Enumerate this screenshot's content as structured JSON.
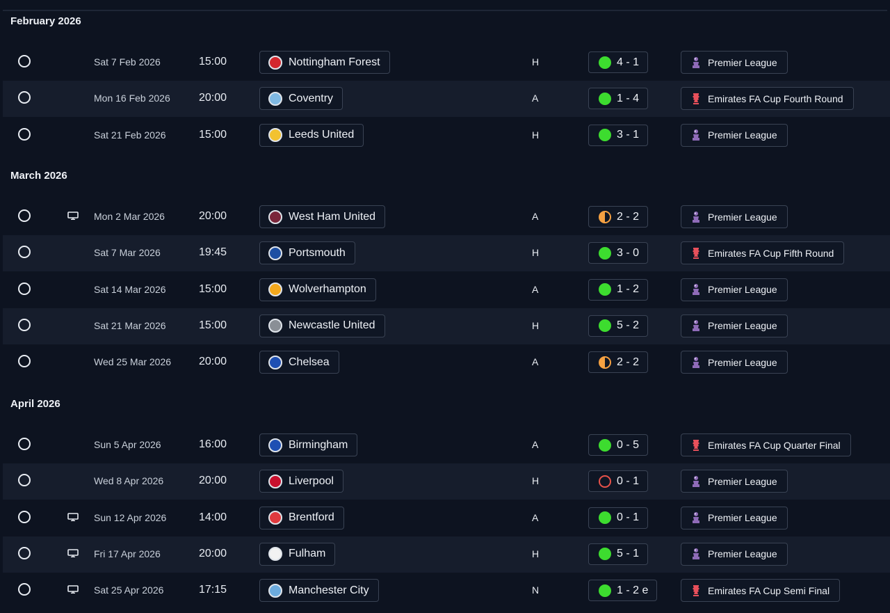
{
  "colors": {
    "win": "#3ddc2f",
    "draw": "#f5a142",
    "loss": "#e8524a",
    "background": "#0d1320",
    "row_alt": "#161d2c"
  },
  "months": [
    {
      "label": "February 2026",
      "matches": [
        {
          "date": "Sat 7 Feb 2026",
          "time": "15:00",
          "team": "Nottingham Forest",
          "crest_color": "#d3272e",
          "venue": "H",
          "outcome": "win",
          "score": "4 - 1",
          "competition": "Premier League",
          "comp_icon": "premier-league-icon",
          "tv": false
        },
        {
          "date": "Mon 16 Feb 2026",
          "time": "20:00",
          "team": "Coventry",
          "crest_color": "#7fb9e3",
          "venue": "A",
          "outcome": "win",
          "score": "1 - 4",
          "competition": "Emirates FA Cup Fourth Round",
          "comp_icon": "fa-cup-icon",
          "tv": false
        },
        {
          "date": "Sat 21 Feb 2026",
          "time": "15:00",
          "team": "Leeds United",
          "crest_color": "#f2c230",
          "venue": "H",
          "outcome": "win",
          "score": "3 - 1",
          "competition": "Premier League",
          "comp_icon": "premier-league-icon",
          "tv": false
        }
      ]
    },
    {
      "label": "March 2026",
      "matches": [
        {
          "date": "Mon 2 Mar 2026",
          "time": "20:00",
          "team": "West Ham United",
          "crest_color": "#7a263a",
          "venue": "A",
          "outcome": "draw",
          "score": "2 - 2",
          "competition": "Premier League",
          "comp_icon": "premier-league-icon",
          "tv": true
        },
        {
          "date": "Sat 7 Mar 2026",
          "time": "19:45",
          "team": "Portsmouth",
          "crest_color": "#1d4fa3",
          "venue": "H",
          "outcome": "win",
          "score": "3 - 0",
          "competition": "Emirates FA Cup Fifth Round",
          "comp_icon": "fa-cup-icon",
          "tv": false
        },
        {
          "date": "Sat 14 Mar 2026",
          "time": "15:00",
          "team": "Wolverhampton",
          "crest_color": "#f3a81d",
          "venue": "A",
          "outcome": "win",
          "score": "1 - 2",
          "competition": "Premier League",
          "comp_icon": "premier-league-icon",
          "tv": false
        },
        {
          "date": "Sat 21 Mar 2026",
          "time": "15:00",
          "team": "Newcastle United",
          "crest_color": "#8a8f96",
          "venue": "H",
          "outcome": "win",
          "score": "5 - 2",
          "competition": "Premier League",
          "comp_icon": "premier-league-icon",
          "tv": false
        },
        {
          "date": "Wed 25 Mar 2026",
          "time": "20:00",
          "team": "Chelsea",
          "crest_color": "#1e4fb3",
          "venue": "A",
          "outcome": "draw",
          "score": "2 - 2",
          "competition": "Premier League",
          "comp_icon": "premier-league-icon",
          "tv": false
        }
      ]
    },
    {
      "label": "April 2026",
      "matches": [
        {
          "date": "Sun 5 Apr 2026",
          "time": "16:00",
          "team": "Birmingham",
          "crest_color": "#1e4fb3",
          "venue": "A",
          "outcome": "win",
          "score": "0 - 5",
          "competition": "Emirates FA Cup Quarter Final",
          "comp_icon": "fa-cup-icon",
          "tv": false
        },
        {
          "date": "Wed 8 Apr 2026",
          "time": "20:00",
          "team": "Liverpool",
          "crest_color": "#c8102e",
          "venue": "H",
          "outcome": "loss",
          "score": "0 - 1",
          "competition": "Premier League",
          "comp_icon": "premier-league-icon",
          "tv": false
        },
        {
          "date": "Sun 12 Apr 2026",
          "time": "14:00",
          "team": "Brentford",
          "crest_color": "#e03a3e",
          "venue": "A",
          "outcome": "win",
          "score": "0 - 1",
          "competition": "Premier League",
          "comp_icon": "premier-league-icon",
          "tv": true
        },
        {
          "date": "Fri 17 Apr 2026",
          "time": "20:00",
          "team": "Fulham",
          "crest_color": "#f2f2f2",
          "venue": "H",
          "outcome": "win",
          "score": "5 - 1",
          "competition": "Premier League",
          "comp_icon": "premier-league-icon",
          "tv": true
        },
        {
          "date": "Sat 25 Apr 2026",
          "time": "17:15",
          "team": "Manchester City",
          "crest_color": "#6cabdd",
          "venue": "N",
          "outcome": "win",
          "score": "1 - 2 e",
          "competition": "Emirates FA Cup Semi Final",
          "comp_icon": "fa-cup-icon",
          "tv": true
        }
      ]
    }
  ]
}
